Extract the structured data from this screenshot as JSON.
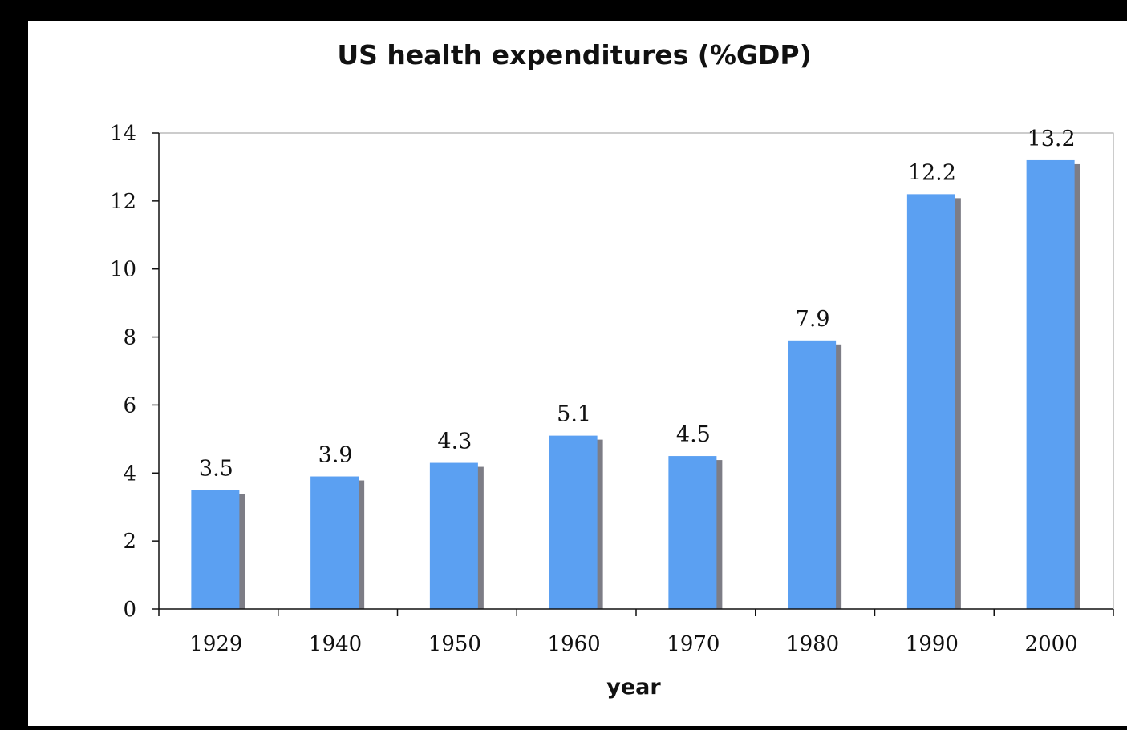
{
  "chart_data": {
    "type": "bar",
    "title": "US health expenditures (%GDP)",
    "xlabel": "year",
    "ylabel": "",
    "categories": [
      "1929",
      "1940",
      "1950",
      "1960",
      "1970",
      "1980",
      "1990",
      "2000"
    ],
    "values": [
      3.5,
      3.9,
      4.3,
      5.1,
      4.5,
      7.9,
      12.2,
      13.2
    ],
    "data_labels": [
      "3.5",
      "3.9",
      "4.3",
      "5.1",
      "4.5",
      "7.9",
      "12.2",
      "13.2"
    ],
    "ylim": [
      0,
      14
    ],
    "yticks": [
      "0",
      "2",
      "4",
      "6",
      "8",
      "10",
      "12",
      "14"
    ],
    "grid": false,
    "legend": "none",
    "colors": {
      "bar": "#5BA0F2",
      "bar_shadow": "#7D7D86",
      "frame": "#000000",
      "background": "#FFFFFF"
    }
  }
}
